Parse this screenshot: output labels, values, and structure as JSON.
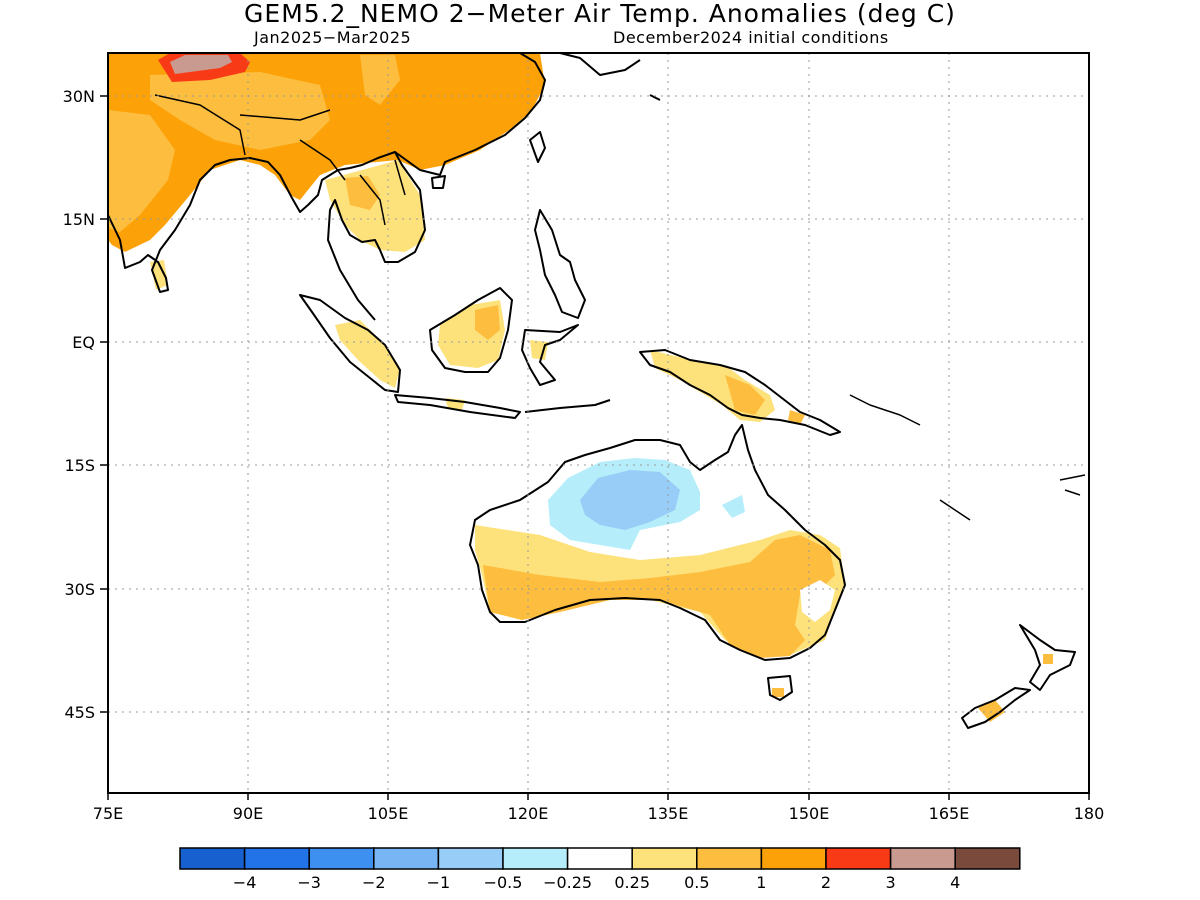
{
  "title": "GEM5.2_NEMO 2−Meter Air Temp. Anomalies (deg C)",
  "subtitle_left": "Jan2025−Mar2025",
  "subtitle_right": "December2024 initial conditions",
  "map": {
    "lon_range": [
      75,
      180
    ],
    "lat_range": [
      -55,
      35
    ],
    "lon_ticks": [
      "75E",
      "90E",
      "105E",
      "120E",
      "135E",
      "150E",
      "165E",
      "180"
    ],
    "lat_ticks": [
      "30N",
      "15N",
      "EQ",
      "15S",
      "30S",
      "45S"
    ],
    "grid": "dotted"
  },
  "legend": {
    "colors": [
      "#1660cf",
      "#2272e8",
      "#3d8ff0",
      "#78b5f5",
      "#97cdf7",
      "#b5eefa",
      "#ffffff",
      "#fde27c",
      "#fdbd3f",
      "#fca208",
      "#f93a16",
      "#c99b90",
      "#7a4b3d"
    ],
    "labels": [
      "−4",
      "−3",
      "−2",
      "−1",
      "−0.5",
      "−0.25",
      "0.25",
      "0.5",
      "1",
      "2",
      "3",
      "4"
    ]
  }
}
